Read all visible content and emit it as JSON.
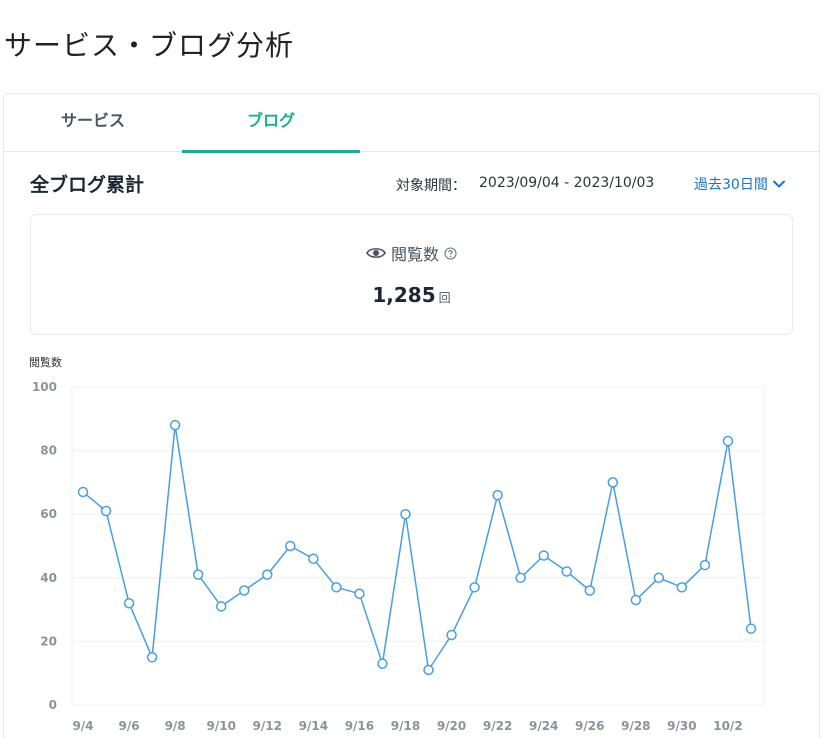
{
  "page": {
    "title": "サービス・ブログ分析"
  },
  "tabs": [
    {
      "label": "サービス",
      "active": false
    },
    {
      "label": "ブログ",
      "active": true
    }
  ],
  "section": {
    "title": "全ブログ累計",
    "period_label": "対象期間：",
    "period_range": "2023/09/04 - 2023/10/03",
    "period_select": "過去30日間",
    "period_select_icon": "chevron-down-icon"
  },
  "stat": {
    "icon": "eye-icon",
    "label": "閲覧数",
    "help_icon": "question-circle-icon",
    "value": "1,285",
    "unit": "回"
  },
  "colors": {
    "accent": "#1fae8c",
    "link": "#1a73c8",
    "series": "#4a9ee0"
  },
  "chart_data": {
    "type": "line",
    "ylabel": "閲覧数",
    "ylim": [
      0,
      100
    ],
    "yticks": [
      0,
      20,
      40,
      60,
      80,
      100
    ],
    "x": [
      "9/4",
      "9/5",
      "9/6",
      "9/7",
      "9/8",
      "9/9",
      "9/10",
      "9/11",
      "9/12",
      "9/13",
      "9/14",
      "9/15",
      "9/16",
      "9/17",
      "9/18",
      "9/19",
      "9/20",
      "9/21",
      "9/22",
      "9/23",
      "9/24",
      "9/25",
      "9/26",
      "9/27",
      "9/28",
      "9/29",
      "9/30",
      "10/1",
      "10/2",
      "10/3"
    ],
    "xtick_labels": [
      "9/4",
      "9/6",
      "9/8",
      "9/10",
      "9/12",
      "9/14",
      "9/16",
      "9/18",
      "9/20",
      "9/22",
      "9/24",
      "9/26",
      "9/28",
      "9/30",
      "10/2"
    ],
    "values": [
      67,
      61,
      32,
      15,
      88,
      41,
      31,
      36,
      41,
      50,
      46,
      37,
      35,
      13,
      60,
      11,
      22,
      37,
      66,
      40,
      47,
      42,
      36,
      70,
      33,
      40,
      37,
      44,
      83,
      24
    ],
    "grid": true
  }
}
